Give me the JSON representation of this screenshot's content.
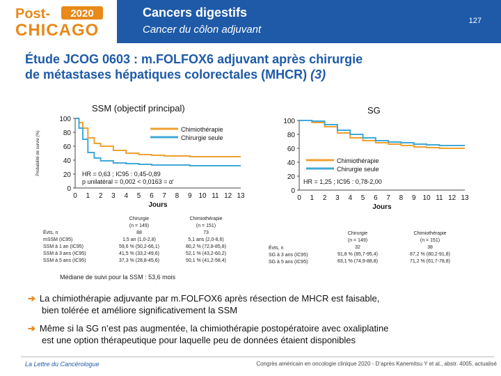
{
  "logo": {
    "line1": "Post-",
    "year": "2020",
    "line2": "CHICAGO"
  },
  "header": {
    "title": "Cancers digestifs",
    "subtitle": "Cancer du côlon adjuvant",
    "page": "127"
  },
  "slide": {
    "title_line1": "Étude JCOG 0603 : m.FOLFOX6 adjuvant après chirurgie",
    "title_line2": "de métastases hépatiques colorectales (MHCR)",
    "title_ref": "(3)"
  },
  "colors": {
    "chemo": "#f0a030",
    "surgery": "#40a8d8",
    "brand": "#1e5aa8"
  },
  "chart_data": [
    {
      "type": "line",
      "title": "SSM (objectif principal)",
      "ylabel": "Probabilité de survie (%)",
      "xlabel": "Jours",
      "x_ticks": [
        "0",
        "1",
        "2",
        "3",
        "4",
        "5",
        "6",
        "7",
        "8",
        "9",
        "10",
        "11",
        "12",
        "13"
      ],
      "y_ticks": [
        "0",
        "20",
        "40",
        "60",
        "80",
        "100"
      ],
      "xlim": [
        0,
        13
      ],
      "ylim": [
        0,
        100
      ],
      "legend": [
        "Chimiothérapie",
        "Chirurgie seule"
      ],
      "annotation_line1": "HR = 0,63 ; IC95 : 0,45-0,89",
      "annotation_line2": "p unilatéral = 0,002 < 0,0163 = α'",
      "series": [
        {
          "name": "Chimiothérapie",
          "x": [
            0,
            0.3,
            0.6,
            1,
            1.5,
            2,
            3,
            4,
            5,
            6,
            7,
            8,
            9,
            10,
            11,
            12,
            13
          ],
          "y": [
            100,
            94,
            86,
            72,
            64,
            60,
            54,
            50,
            48,
            47,
            46,
            46,
            45,
            45,
            45,
            45,
            45
          ]
        },
        {
          "name": "Chirurgie seule",
          "x": [
            0,
            0.3,
            0.6,
            1,
            1.5,
            2,
            3,
            4,
            5,
            6,
            7,
            8,
            9,
            10,
            11,
            12,
            13
          ],
          "y": [
            100,
            86,
            70,
            51,
            43,
            39,
            36,
            35,
            34,
            33,
            33,
            33,
            32,
            32,
            32,
            32,
            32
          ]
        }
      ]
    },
    {
      "type": "line",
      "title": "SG",
      "xlabel": "Jours",
      "x_ticks": [
        "0",
        "1",
        "2",
        "3",
        "4",
        "5",
        "6",
        "7",
        "8",
        "9",
        "10",
        "11",
        "12",
        "13"
      ],
      "y_ticks": [
        "0",
        "20",
        "40",
        "60",
        "80",
        "100"
      ],
      "xlim": [
        0,
        13
      ],
      "ylim": [
        0,
        100
      ],
      "legend": [
        "Chimiothérapie",
        "Chirurgie seule"
      ],
      "annotation": "HR = 1,25 ; IC95 : 0,78-2,00",
      "series": [
        {
          "name": "Chimiothérapie",
          "x": [
            0,
            1,
            2,
            3,
            4,
            5,
            6,
            7,
            8,
            9,
            10,
            11,
            12,
            13
          ],
          "y": [
            100,
            97,
            91,
            82,
            75,
            71,
            68,
            66,
            64,
            62,
            61,
            60,
            60,
            60
          ]
        },
        {
          "name": "Chirurgie seule",
          "x": [
            0,
            1,
            2,
            3,
            4,
            5,
            6,
            7,
            8,
            9,
            10,
            11,
            12,
            13
          ],
          "y": [
            100,
            99,
            94,
            86,
            80,
            75,
            71,
            69,
            68,
            66,
            65,
            64,
            64,
            64
          ]
        }
      ]
    }
  ],
  "ssm_table": {
    "row_labels": "Évts, n\nmSSM (IC95)\nSSM à 1 an (IC95)\nSSM à 3 ans (IC95)\nSSM à 5 ans (IC95)",
    "col1": "Chirurgie\n(n = 149)\n88\n1,5 an (1,0-2,8)\n59,6 % (50,2-66,1)\n41,5 % (33,2-49,6)\n37,3 % (28,8-45,6)",
    "col2": "Chimiothérapie\n(n = 151)\n73\n5,1 ans (2,0-8,6)\n80,2 % (72,8-85,8)\n52,1 % (43,2-60,2)\n50,1 % (41,2-58,4)"
  },
  "sg_table": {
    "row_labels": "Évts, n\nSG à 3 ans (IC95)\nSG à 5 ans (IC95)",
    "col1": "Chirurgie\n(n = 149)\n32\n91,8 % (85,7-95,4)\n83,1 % (74,9-88,8)",
    "col2": "Chimiothérapie\n(n = 151)\n38\n87,2 % (80,2-91,8)\n71,2 % (61,7-78,8)"
  },
  "note": "Médiane de suivi pour la SSM : 53,6 mois",
  "bullets": [
    {
      "line1": "La chimiothérapie adjuvante par m.FOLFOX6 après résection de MHCR est faisable,",
      "line2": "bien tolérée et améliore significativement la SSM"
    },
    {
      "line1": "Même si la SG n’est pas augmentée, la chimiothérapie postopératoire avec oxaliplatine",
      "line2": "est une option thérapeutique pour laquelle peu de données étaient disponibles"
    }
  ],
  "footer": {
    "left": "La Lettre du Cancérologue",
    "right": "Congrès américain en oncologie clinique 2020 - D’après Kanemitsu Y et al., abstr. 4005, actualisé"
  }
}
